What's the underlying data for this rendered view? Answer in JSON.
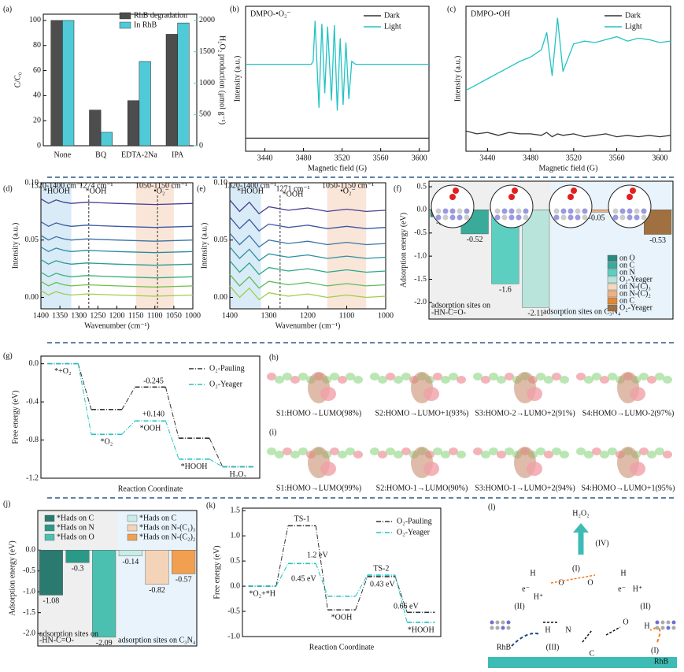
{
  "chart_data": [
    {
      "label": "(a)",
      "type": "bar",
      "categories": [
        "None",
        "BQ",
        "EDTA-2Na",
        "IPA"
      ],
      "ylabel": "C/C₀",
      "y2label": "H₂O₂ production (μmol g⁻¹)",
      "series": [
        {
          "name": "RhB degradation",
          "color": "#4d4d4d",
          "values": [
            100,
            28.5,
            36,
            89
          ]
        },
        {
          "name": "In RhB",
          "color": "#4fcad6",
          "axis": "y2",
          "values": [
            2000,
            215,
            1345,
            1960
          ]
        }
      ],
      "ylim": [
        0,
        105
      ],
      "yticks": [
        0,
        20,
        40,
        60,
        80,
        100
      ],
      "y2lim": [
        0,
        2100
      ],
      "y2ticks": [
        0,
        500,
        1000,
        1500,
        2000
      ]
    },
    {
      "label": "(b)",
      "type": "line",
      "annotations": [
        "DMPO-•O₂⁻"
      ],
      "xlabel": "Magnetic field (G)",
      "ylabel": "Intensity (a.u.)",
      "x": [
        3420,
        3440,
        3460,
        3480,
        3488,
        3490,
        3492,
        3496,
        3499,
        3502,
        3505,
        3509,
        3512,
        3515,
        3518,
        3521,
        3524,
        3527,
        3530,
        3534,
        3540,
        3560,
        3580,
        3600,
        3610
      ],
      "series": [
        {
          "name": "Dark",
          "color": "#333333",
          "values": [
            0.9,
            0.9,
            0.9,
            0.9,
            0.9,
            0.9,
            0.9,
            0.9,
            0.9,
            0.9,
            0.9,
            0.9,
            0.9,
            0.9,
            0.9,
            0.9,
            0.9,
            0.9,
            0.9,
            0.9,
            0.9,
            0.9,
            0.9,
            0.9,
            0.9
          ]
        },
        {
          "name": "Light",
          "color": "#22c3c3",
          "values": [
            6,
            6,
            6,
            6,
            6,
            6.2,
            9,
            3,
            8.8,
            4,
            8.6,
            3.5,
            8.7,
            2.8,
            7.8,
            3.2,
            7.5,
            3.6,
            6.2,
            6,
            6,
            6,
            6,
            6,
            6
          ]
        }
      ],
      "xlim": [
        3420,
        3610
      ],
      "xticks": [
        3440,
        3480,
        3520,
        3560,
        3600
      ],
      "ylim": [
        0,
        10
      ]
    },
    {
      "label": "(c)",
      "type": "line",
      "annotations": [
        "DMPO-•OH"
      ],
      "xlabel": "Magnetic field (G)",
      "ylabel": "Intensity (a.u.)",
      "x": [
        3420,
        3430,
        3440,
        3450,
        3460,
        3470,
        3480,
        3490,
        3495,
        3500,
        3505,
        3510,
        3520,
        3530,
        3540,
        3550,
        3560,
        3570,
        3580,
        3590,
        3600,
        3610
      ],
      "series": [
        {
          "name": "Dark",
          "color": "#333333",
          "values": [
            1.4,
            1.2,
            1.3,
            1.1,
            1.3,
            1.2,
            1.2,
            1.1,
            1.3,
            1.0,
            1.2,
            1.1,
            1.2,
            1.0,
            1.1,
            1.2,
            1.0,
            1.1,
            1.0,
            1.1,
            1.0,
            1.1
          ]
        },
        {
          "name": "Light",
          "color": "#22c3c3",
          "values": [
            4.2,
            4.6,
            5.0,
            5.4,
            5.8,
            6.2,
            6.5,
            7.0,
            8.2,
            5.2,
            9.2,
            5.5,
            7.4,
            7.6,
            7.5,
            7.7,
            7.9,
            7.6,
            7.8,
            7.7,
            7.5,
            7.6
          ]
        }
      ],
      "xlim": [
        3420,
        3610
      ],
      "xticks": [
        3440,
        3480,
        3520,
        3560,
        3600
      ],
      "ylim": [
        0,
        10
      ]
    },
    {
      "label": "(d)",
      "type": "line",
      "xlabel": "Wavenumber (cm⁻¹)",
      "ylabel": "Intensity (a.u.)",
      "annotations": [
        "1320-1400 cm⁻¹",
        "*HOOH",
        "1274 cm⁻¹",
        "*OOH",
        "1050-1150 cm⁻¹",
        "•O₂⁻"
      ],
      "bands": [
        {
          "range": [
            1320,
            1400
          ],
          "color": "#cfe6f5"
        },
        {
          "range": [
            1050,
            1150
          ],
          "color": "#f8e0cf"
        }
      ],
      "vlines": [
        1274,
        1093
      ],
      "x": [
        1400,
        1380,
        1360,
        1340,
        1320,
        1280,
        1200,
        1100,
        1000
      ],
      "series": [
        {
          "color": "#9ad04c",
          "values": [
            0.006,
            0.002,
            0.005,
            0.003,
            0.002,
            0.003,
            0.002,
            0.001,
            0.002
          ]
        },
        {
          "color": "#6cc04a",
          "values": [
            0.014,
            0.01,
            0.013,
            0.011,
            0.01,
            0.011,
            0.01,
            0.009,
            0.01
          ]
        },
        {
          "color": "#38b07a",
          "values": [
            0.022,
            0.018,
            0.021,
            0.019,
            0.018,
            0.019,
            0.018,
            0.017,
            0.018
          ]
        },
        {
          "color": "#2a9a90",
          "values": [
            0.033,
            0.029,
            0.032,
            0.03,
            0.029,
            0.03,
            0.029,
            0.028,
            0.029
          ]
        },
        {
          "color": "#2a8aa0",
          "values": [
            0.044,
            0.04,
            0.043,
            0.041,
            0.04,
            0.041,
            0.04,
            0.039,
            0.04
          ]
        },
        {
          "color": "#3a70a8",
          "values": [
            0.054,
            0.05,
            0.053,
            0.051,
            0.05,
            0.051,
            0.05,
            0.049,
            0.05
          ]
        },
        {
          "color": "#3a5aa0",
          "values": [
            0.066,
            0.062,
            0.065,
            0.063,
            0.062,
            0.063,
            0.062,
            0.061,
            0.062
          ]
        },
        {
          "color": "#463e90",
          "values": [
            0.086,
            0.082,
            0.085,
            0.083,
            0.082,
            0.083,
            0.082,
            0.081,
            0.082
          ]
        }
      ],
      "xlim": [
        1400,
        1000
      ],
      "xticks": [
        1400,
        1350,
        1300,
        1250,
        1200,
        1150,
        1100,
        1050,
        1000
      ],
      "ylim": [
        -0.01,
        0.1
      ],
      "yticks": [
        {
          "value": 0,
          "label": "0.00"
        },
        0.05,
        {
          "value": 0.1,
          "label": "0.10"
        }
      ]
    },
    {
      "label": "(e)",
      "type": "line",
      "xlabel": "Wavenumber (cm⁻¹)",
      "ylabel": "Intensity (a.u.)",
      "annotations": [
        "1320-1400 cm⁻¹",
        "*HOOH",
        "1271 cm⁻¹",
        "*OOH",
        "1050-1150 cm⁻¹",
        "•O₂⁻"
      ],
      "bands": [
        {
          "range": [
            1320,
            1400
          ],
          "color": "#cfe6f5"
        },
        {
          "range": [
            1050,
            1150
          ],
          "color": "#f8e0cf"
        }
      ],
      "vlines": [
        1271
      ],
      "x": [
        1400,
        1375,
        1350,
        1325,
        1300,
        1250,
        1200,
        1150,
        1100,
        1050,
        1000
      ],
      "series": [
        {
          "color": "#9ad04c",
          "values": [
            0.01,
            0.0,
            0.008,
            -0.002,
            0.004,
            0.001,
            0.003,
            0.0,
            0.002,
            0.0,
            0.001
          ]
        },
        {
          "color": "#5cbc5a",
          "values": [
            0.02,
            0.01,
            0.018,
            0.008,
            0.014,
            0.011,
            0.013,
            0.01,
            0.012,
            0.01,
            0.011
          ]
        },
        {
          "color": "#2aa888",
          "values": [
            0.032,
            0.022,
            0.03,
            0.02,
            0.026,
            0.023,
            0.025,
            0.022,
            0.024,
            0.022,
            0.023
          ]
        },
        {
          "color": "#2a90a0",
          "values": [
            0.044,
            0.034,
            0.042,
            0.032,
            0.038,
            0.035,
            0.037,
            0.034,
            0.036,
            0.034,
            0.035
          ]
        },
        {
          "color": "#3a74a8",
          "values": [
            0.056,
            0.046,
            0.054,
            0.044,
            0.05,
            0.047,
            0.049,
            0.046,
            0.048,
            0.046,
            0.047
          ]
        },
        {
          "color": "#3a58a0",
          "values": [
            0.07,
            0.06,
            0.068,
            0.058,
            0.064,
            0.061,
            0.063,
            0.06,
            0.062,
            0.06,
            0.061
          ]
        },
        {
          "color": "#463e90",
          "values": [
            0.085,
            0.075,
            0.083,
            0.073,
            0.079,
            0.076,
            0.078,
            0.075,
            0.077,
            0.075,
            0.076
          ]
        }
      ],
      "xlim": [
        1400,
        1000
      ],
      "xticks": [
        1400,
        1300,
        1200,
        1100,
        1000
      ],
      "ylim": [
        -0.01,
        0.1
      ],
      "yticks": [
        {
          "value": 0,
          "label": "0.00"
        },
        0.05,
        {
          "value": 0.1,
          "label": "0.10"
        }
      ]
    },
    {
      "label": "(f)",
      "type": "bar",
      "ylabel": "Adsorption energy (eV)",
      "annotations": [
        "adsorption sites on",
        "-HN-C=O-",
        "adsorption sites on C₃N₄"
      ],
      "categories": [
        "on O",
        "on C",
        "on N",
        "O₂-Yeager",
        "on N-(C)₃",
        "on N-(C)₂",
        "on C",
        "O₂-Yeager"
      ],
      "values": [
        -0.15,
        -0.52,
        -1.6,
        -2.11,
        -0.03,
        -0.05,
        -0.11,
        -0.53
      ],
      "colors": [
        "#2a8a80",
        "#3aaa9a",
        "#5ccfc0",
        "#b8e4dc",
        "#f4d8c0",
        "#f0b080",
        "#e08838",
        "#a07040"
      ],
      "ylim": [
        -2.36,
        0.62
      ],
      "yticks": [
        0.5,
        {
          "value": 0,
          "label": "0.0"
        },
        -0.5,
        {
          "value": -1,
          "label": "-1.0"
        },
        -1.5,
        {
          "value": -2,
          "label": "-2.0"
        }
      ]
    },
    {
      "label": "(g)",
      "type": "energy",
      "xlabel": "Reaction Coordinate",
      "ylabel": "Free energy (eV)",
      "annotations": [
        "-0.245",
        "+0.140"
      ],
      "categories": [
        "*+O₂",
        "*O₂",
        "*OOH",
        "*HOOH",
        "H₂O₂"
      ],
      "series": [
        {
          "name": "O₂-Pauling",
          "color": "#333333",
          "values": [
            0,
            -0.48,
            -0.245,
            -0.78,
            -1.08
          ]
        },
        {
          "name": "O₂-Yeager",
          "color": "#22c3c3",
          "values": [
            0,
            -0.74,
            -0.6,
            -1.0,
            -1.08
          ]
        }
      ],
      "ylim": [
        -1.2,
        0.08
      ],
      "yticks": [
        {
          "value": 0,
          "label": "0.0"
        },
        -0.4,
        -0.8,
        -1.2
      ]
    },
    {
      "label": "(j)",
      "type": "bar",
      "ylabel": "Adsorption energy (eV)",
      "annotations": [
        "adsorption sites on",
        "-HN-C=O-",
        "adsorption sites on C₃N₄"
      ],
      "categories": [
        "*Hads on C",
        "*Hads on N",
        "*Hads on O",
        "*Hads on C",
        "*Hads on N-(C₁)₃",
        "*Hads on N-(C₂)₂"
      ],
      "values": [
        -1.08,
        -0.3,
        -2.09,
        -0.14,
        -0.82,
        -0.57
      ],
      "colors": [
        "#2a7a70",
        "#2a9a88",
        "#4cc0b0",
        "#c8ece6",
        "#f4d4b8",
        "#f0a050"
      ],
      "ylim": [
        -2.3,
        0.95
      ],
      "yticks": [
        {
          "value": 0,
          "label": "0.0"
        },
        -0.5,
        {
          "value": -1,
          "label": "-1.0"
        },
        -1.5,
        {
          "value": -2,
          "label": "-2.0"
        }
      ]
    },
    {
      "label": "(k)",
      "type": "energy",
      "xlabel": "Reaction Coordinate",
      "ylabel": "Free energy (eV)",
      "annotations": [
        "1.2 eV",
        "0.45 eV",
        "0.43 eV",
        "0.66 eV"
      ],
      "categories": [
        "*O₂+*H",
        "TS-1",
        "*OOH",
        "TS-2",
        "*HOOH"
      ],
      "series": [
        {
          "name": "O₂-Pauling",
          "color": "#333333",
          "values": [
            0,
            1.2,
            -0.47,
            0.19,
            -0.52
          ]
        },
        {
          "name": "O₂-Yeager",
          "color": "#22c3c3",
          "values": [
            0,
            0.45,
            -0.2,
            0.22,
            -0.72
          ]
        }
      ],
      "ylim": [
        -1,
        1.55
      ],
      "yticks": [
        1.5,
        {
          "value": 1,
          "label": "1.0"
        },
        0.5,
        {
          "value": 0,
          "label": "0.0"
        },
        -0.5,
        {
          "value": -1,
          "label": "-1.0"
        }
      ]
    }
  ],
  "images": [
    {
      "label": "(h)",
      "captions": [
        "S1:HOMO→LUMO(98%)",
        "S2:HOMO→LUMO+1(93%)",
        "S3:HOMO-2→LUMO+2(91%)",
        "S4:HOMO→LUMO-2(97%)"
      ]
    },
    {
      "label": "(i)",
      "captions": [
        "S1:HOMO→LUMO(99%)",
        "S2:HOMO-1→LUMO(90%)",
        "S3:HOMO-1→LUMO+2(94%)",
        "S4:HOMO→LUMO+1(95%)"
      ]
    }
  ],
  "diagram": {
    "label": "(l)",
    "texts": [
      "H₂O₂",
      "(IV)",
      "H",
      "O",
      "O",
      "H",
      "(I)",
      "e⁻",
      "H⁺",
      "(II)",
      "e⁻",
      "H⁺",
      "(II)",
      "H",
      "N",
      "C",
      "O",
      "H",
      "(III)",
      "(I)",
      "RhB",
      "RhB"
    ]
  }
}
